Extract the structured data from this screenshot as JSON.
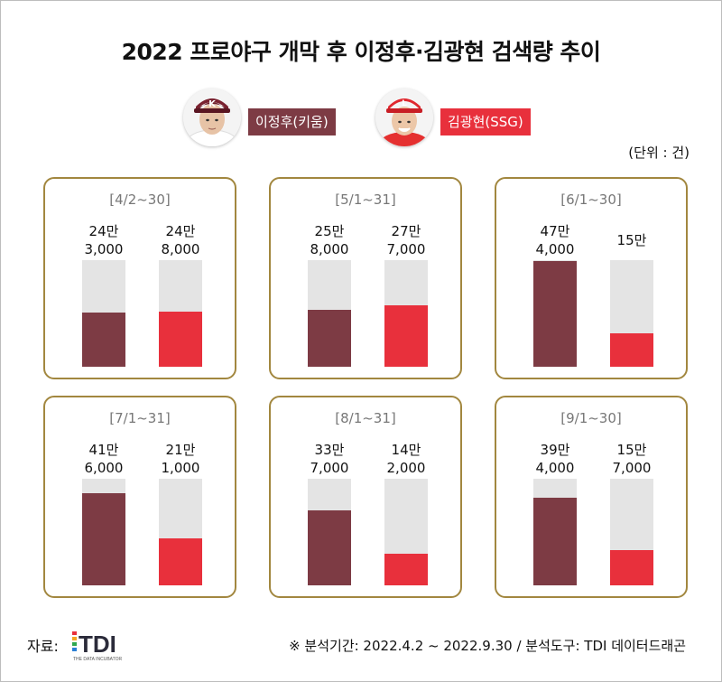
{
  "title": "2022 프로야구 개막 후 이정후·김광현 검색량 추이",
  "unit": "(단위 : 건)",
  "colors": {
    "lee": "#7d3b44",
    "kim": "#e8303c",
    "track": "#e4e4e4",
    "border": "#a2873f"
  },
  "legend": [
    {
      "label": "이정후(키움)",
      "icon": "kiwoom-player-photo"
    },
    {
      "label": "김광현(SSG)",
      "icon": "ssg-player-photo"
    }
  ],
  "chart_data": {
    "type": "bar",
    "series_names": [
      "이정후(키움)",
      "김광현(SSG)"
    ],
    "ylim": [
      0,
      480000
    ],
    "panels": [
      {
        "period": "[4/2~30]",
        "values": [
          243000,
          248000
        ],
        "labels": [
          "24만\n3,000",
          "24만\n8,000"
        ]
      },
      {
        "period": "[5/1~31]",
        "values": [
          258000,
          277000
        ],
        "labels": [
          "25만\n8,000",
          "27만\n7,000"
        ]
      },
      {
        "period": "[6/1~30]",
        "values": [
          474000,
          150000
        ],
        "labels": [
          "47만\n4,000",
          "15만"
        ]
      },
      {
        "period": "[7/1~31]",
        "values": [
          416000,
          211000
        ],
        "labels": [
          "41만\n6,000",
          "21만\n1,000"
        ]
      },
      {
        "period": "[8/1~31]",
        "values": [
          337000,
          142000
        ],
        "labels": [
          "33만\n7,000",
          "14만\n2,000"
        ]
      },
      {
        "period": "[9/1~30]",
        "values": [
          394000,
          157000
        ],
        "labels": [
          "39만\n4,000",
          "15만\n7,000"
        ]
      }
    ]
  },
  "footer": {
    "source_label": "자료:",
    "logo_text": "TDI",
    "logo_sub": "THE DATA INCUBATOR",
    "note": "※ 분석기간: 2022.4.2 ~  2022.9.30  / 분석도구: TDI 데이터드래곤"
  }
}
